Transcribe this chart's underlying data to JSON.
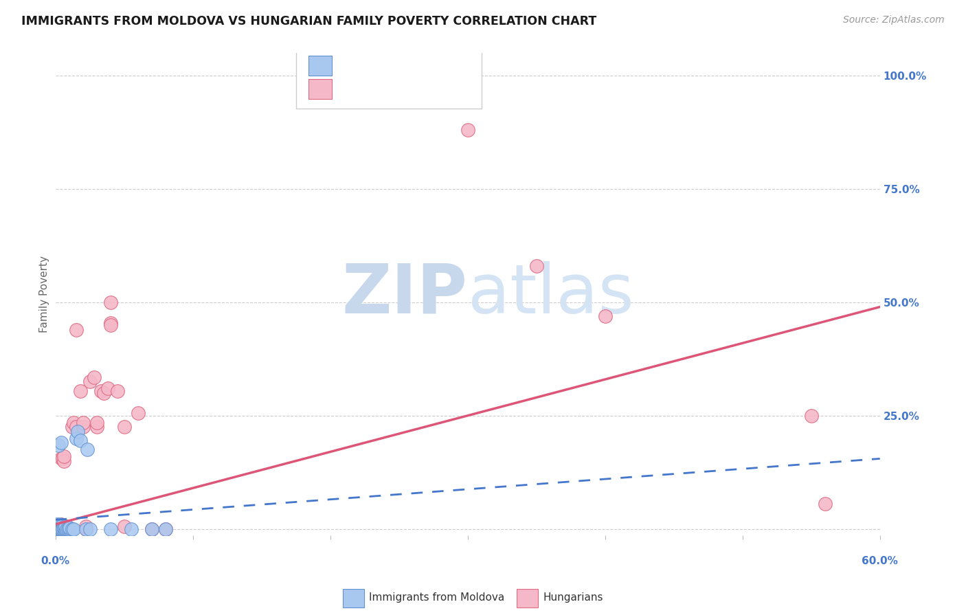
{
  "title": "IMMIGRANTS FROM MOLDOVA VS HUNGARIAN FAMILY POVERTY CORRELATION CHART",
  "source": "Source: ZipAtlas.com",
  "ylabel": "Family Poverty",
  "xlim": [
    0.0,
    0.6
  ],
  "ylim": [
    -0.015,
    1.05
  ],
  "yticks": [
    0.0,
    0.25,
    0.5,
    0.75,
    1.0
  ],
  "ytick_labels": [
    "",
    "25.0%",
    "50.0%",
    "75.0%",
    "100.0%"
  ],
  "xticks": [
    0.0,
    0.1,
    0.2,
    0.3,
    0.4,
    0.5,
    0.6
  ],
  "blue_color": "#a8c8f0",
  "pink_color": "#f5b8c8",
  "blue_edge_color": "#6090d0",
  "pink_edge_color": "#e06880",
  "blue_line_color": "#4477cc",
  "pink_line_color": "#dd5577",
  "blue_scatter": [
    [
      0.001,
      0.0
    ],
    [
      0.001,
      0.005
    ],
    [
      0.001,
      0.01
    ],
    [
      0.001,
      0.0
    ],
    [
      0.002,
      0.0
    ],
    [
      0.002,
      0.003
    ],
    [
      0.002,
      0.0
    ],
    [
      0.002,
      0.185
    ],
    [
      0.003,
      0.0
    ],
    [
      0.003,
      0.005
    ],
    [
      0.003,
      0.01
    ],
    [
      0.003,
      0.0
    ],
    [
      0.004,
      0.0
    ],
    [
      0.004,
      0.005
    ],
    [
      0.004,
      0.19
    ],
    [
      0.004,
      0.0
    ],
    [
      0.005,
      0.0
    ],
    [
      0.005,
      0.003
    ],
    [
      0.005,
      0.0
    ],
    [
      0.006,
      0.0
    ],
    [
      0.006,
      0.003
    ],
    [
      0.007,
      0.0
    ],
    [
      0.007,
      0.005
    ],
    [
      0.008,
      0.0
    ],
    [
      0.009,
      0.0
    ],
    [
      0.01,
      0.0
    ],
    [
      0.01,
      0.003
    ],
    [
      0.012,
      0.0
    ],
    [
      0.013,
      0.0
    ],
    [
      0.015,
      0.2
    ],
    [
      0.016,
      0.215
    ],
    [
      0.018,
      0.195
    ],
    [
      0.022,
      0.0
    ],
    [
      0.023,
      0.175
    ],
    [
      0.025,
      0.0
    ],
    [
      0.04,
      0.0
    ],
    [
      0.055,
      0.0
    ],
    [
      0.07,
      0.0
    ],
    [
      0.08,
      0.0
    ]
  ],
  "pink_scatter": [
    [
      0.001,
      0.0
    ],
    [
      0.002,
      0.0
    ],
    [
      0.002,
      0.005
    ],
    [
      0.003,
      0.0
    ],
    [
      0.003,
      0.005
    ],
    [
      0.004,
      0.0
    ],
    [
      0.004,
      0.01
    ],
    [
      0.004,
      0.155
    ],
    [
      0.005,
      0.0
    ],
    [
      0.005,
      0.005
    ],
    [
      0.005,
      0.155
    ],
    [
      0.006,
      0.15
    ],
    [
      0.006,
      0.16
    ],
    [
      0.007,
      0.0
    ],
    [
      0.007,
      0.005
    ],
    [
      0.008,
      0.0
    ],
    [
      0.008,
      0.005
    ],
    [
      0.009,
      0.0
    ],
    [
      0.01,
      0.0
    ],
    [
      0.012,
      0.225
    ],
    [
      0.013,
      0.235
    ],
    [
      0.015,
      0.44
    ],
    [
      0.015,
      0.225
    ],
    [
      0.018,
      0.305
    ],
    [
      0.02,
      0.225
    ],
    [
      0.02,
      0.235
    ],
    [
      0.022,
      0.0
    ],
    [
      0.022,
      0.005
    ],
    [
      0.025,
      0.325
    ],
    [
      0.028,
      0.335
    ],
    [
      0.03,
      0.225
    ],
    [
      0.03,
      0.235
    ],
    [
      0.033,
      0.305
    ],
    [
      0.035,
      0.3
    ],
    [
      0.038,
      0.31
    ],
    [
      0.04,
      0.455
    ],
    [
      0.04,
      0.5
    ],
    [
      0.04,
      0.45
    ],
    [
      0.045,
      0.305
    ],
    [
      0.05,
      0.225
    ],
    [
      0.05,
      0.005
    ],
    [
      0.06,
      0.255
    ],
    [
      0.07,
      0.0
    ],
    [
      0.08,
      0.0
    ],
    [
      0.3,
      0.88
    ],
    [
      0.35,
      0.58
    ],
    [
      0.4,
      0.47
    ],
    [
      0.55,
      0.25
    ],
    [
      0.56,
      0.055
    ]
  ],
  "blue_trend_x": [
    0.0,
    0.6
  ],
  "blue_trend_y": [
    0.02,
    0.155
  ],
  "pink_trend_x": [
    0.0,
    0.6
  ],
  "pink_trend_y": [
    0.01,
    0.49
  ],
  "watermark_line1": "ZIP",
  "watermark_line2": "atlas",
  "watermark_color": "#ccd9ec",
  "background_color": "#ffffff",
  "grid_color": "#cccccc",
  "grid_linestyle": "--",
  "title_fontsize": 12.5,
  "source_fontsize": 10,
  "tick_label_fontsize": 11,
  "ylabel_fontsize": 11
}
